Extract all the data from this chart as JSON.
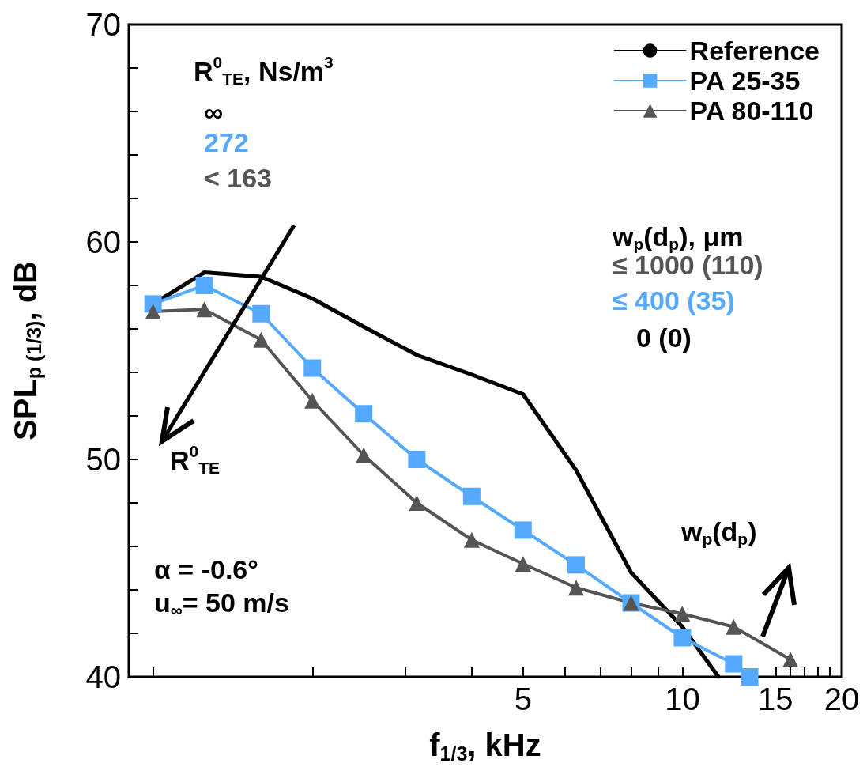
{
  "chart_data": {
    "type": "line",
    "xlabel": "f$_{1/3}$, kHz",
    "ylabel": "SPL$_{p (1/3)}$, dB",
    "log": "x",
    "grid": false,
    "legend": "top right",
    "line_style": "solid",
    "x": [
      1,
      1.25,
      1.6,
      2,
      2.5,
      3.15,
      4,
      5,
      6.3,
      8,
      10,
      12.5,
      16
    ],
    "xlim": [
      0.9,
      20
    ],
    "xticks": [
      {
        "value": 1,
        "label": null
      },
      {
        "value": 2,
        "label": null
      },
      {
        "value": 3,
        "label": null
      },
      {
        "value": 4,
        "label": null
      },
      5,
      {
        "value": 6,
        "label": null
      },
      {
        "value": 7,
        "label": null
      },
      {
        "value": 8,
        "label": null
      },
      {
        "value": 9,
        "label": null
      },
      10,
      15,
      {
        "value": 16,
        "label": null
      },
      {
        "value": 17,
        "label": null
      },
      {
        "value": 18,
        "label": null
      },
      {
        "value": 19,
        "label": null
      },
      20
    ],
    "ylim": [
      40,
      70
    ],
    "yticks": [
      40,
      {
        "value": 42,
        "label": null
      },
      {
        "value": 44,
        "label": null
      },
      {
        "value": 46,
        "label": null
      },
      {
        "value": 48,
        "label": null
      },
      50,
      {
        "value": 52,
        "label": null
      },
      {
        "value": 54,
        "label": null
      },
      {
        "value": 56,
        "label": null
      },
      {
        "value": 58,
        "label": null
      },
      60,
      {
        "value": 62,
        "label": null
      },
      {
        "value": 64,
        "label": null
      },
      {
        "value": 66,
        "label": null
      },
      {
        "value": 68,
        "label": null
      },
      70
    ],
    "series": [
      {
        "name": "Reference",
        "color": "#000000",
        "marker": "none",
        "x": [
          1.04,
          1.25,
          1.6,
          2,
          2.5,
          3.15,
          4,
          5,
          6.3,
          8,
          10,
          11.7
        ],
        "values": [
          57.4,
          58.6,
          58.4,
          57.4,
          56.1,
          54.8,
          53.9,
          53.0,
          49.5,
          44.8,
          42.3,
          40
        ]
      },
      {
        "name": "PA 25-35",
        "color": "#55aaff",
        "marker": "square",
        "x": [
          1,
          1.25,
          1.6,
          2,
          2.5,
          3.15,
          4,
          5,
          6.3,
          8,
          10,
          12.5,
          13.4
        ],
        "values": [
          57.15,
          58.0,
          56.7,
          54.2,
          52.1,
          50.0,
          48.3,
          46.75,
          45.15,
          43.4,
          41.8,
          40.6,
          40
        ]
      },
      {
        "name": "PA 80-110",
        "color": "#555555",
        "marker": "triangle",
        "values": [
          56.8,
          56.9,
          55.5,
          52.7,
          50.2,
          48.0,
          46.3,
          45.2,
          44.1,
          43.4,
          42.9,
          42.3,
          40.8
        ]
      }
    ],
    "annotations": [
      "R$^{0}$$_{TE}$, Ns/m$^{3}$",
      "∞",
      "272",
      "< 163",
      "R$^{0}$$_{TE}$",
      "w$_{p}$(d$_{p}$), μm",
      "≤ 1000 (110)",
      "≤ 400 (35)",
      "0 (0)",
      "w$_{p}$(d$_{p}$)",
      "α = -0.6°",
      "u$_{∞}$= 50 m/s"
    ]
  }
}
